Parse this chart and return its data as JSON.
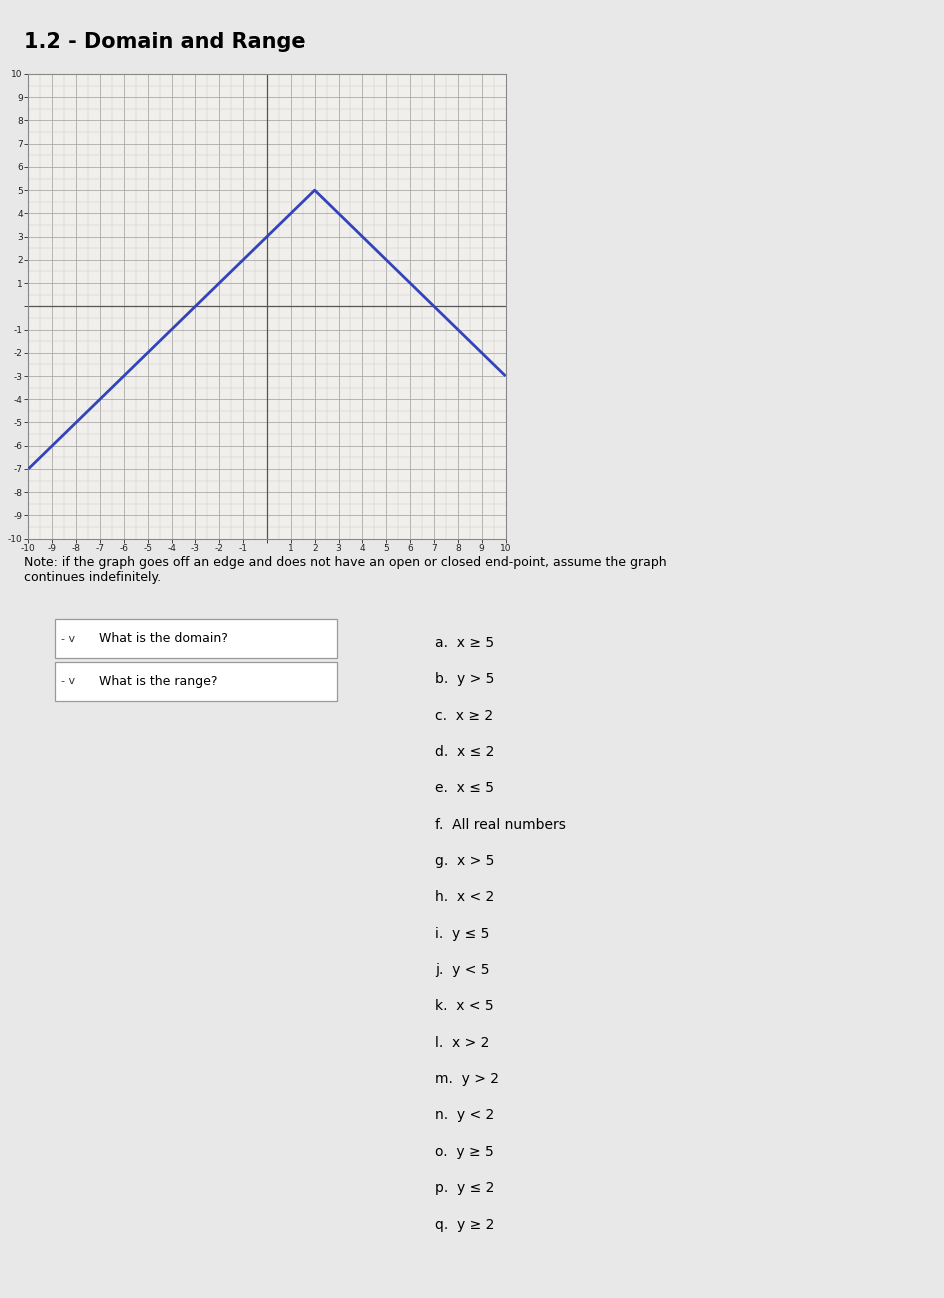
{
  "title": "1.2 - Domain and Range",
  "note": "Note: if the graph goes off an edge and does not have an open or closed end-point, assume the graph\ncontinues indefinitely.",
  "graph": {
    "xlim": [
      -10,
      10
    ],
    "ylim": [
      -10,
      10
    ],
    "line_points": [
      [
        -10,
        -7
      ],
      [
        2,
        5
      ],
      [
        10,
        -3
      ]
    ],
    "line_color": "#3344bb",
    "line_width": 2.0
  },
  "questions": [
    "What is the domain?",
    "What is the range?"
  ],
  "answers": [
    "a.  x ≥ 5",
    "b.  y > 5",
    "c.  x ≥ 2",
    "d.  x ≤ 2",
    "e.  x ≤ 5",
    "f.  All real numbers",
    "g.  x > 5",
    "h.  x < 2",
    "i.  y ≤ 5",
    "j.  y < 5",
    "k.  x < 5",
    "l.  x > 2",
    "m.  y > 2",
    "n.  y < 2",
    "o.  y ≥ 5",
    "p.  y ≤ 2",
    "q.  y ≥ 2"
  ],
  "bg_color": "#e8e8e8",
  "graph_face_color": "#f0efeb",
  "grid_major_color": "#aaaaaa",
  "grid_minor_color": "#cccccc",
  "axis_line_color": "#555555",
  "title_fontsize": 15,
  "note_fontsize": 9,
  "answer_fontsize": 10,
  "question_fontsize": 9
}
